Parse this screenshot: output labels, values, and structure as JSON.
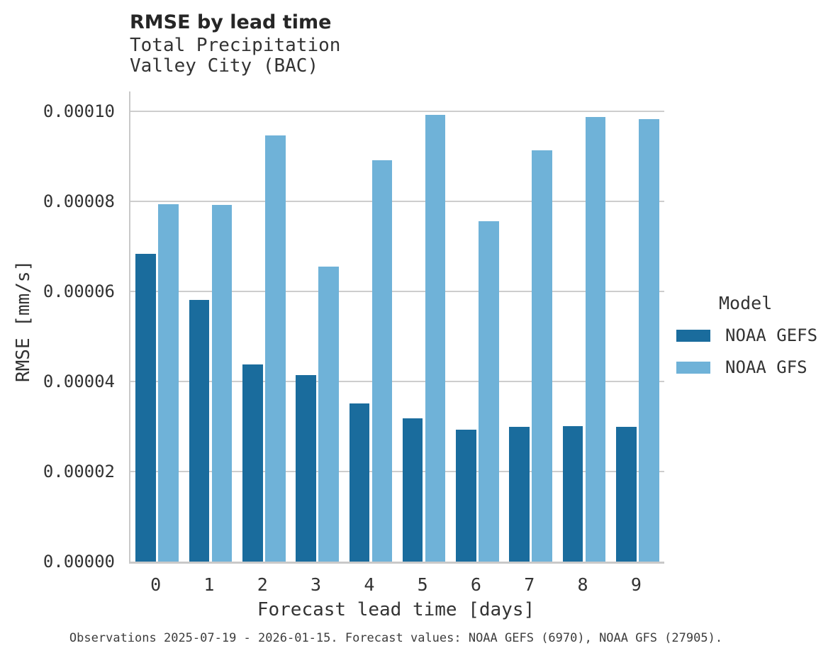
{
  "header": {
    "title": "RMSE by lead time",
    "subtitle_line1": "Total Precipitation",
    "subtitle_line2": "Valley City (BAC)"
  },
  "legend": {
    "title": "Model"
  },
  "caption": "Observations 2025-07-19 - 2026-01-15. Forecast values: NOAA GEFS (6970), NOAA GFS (27905).",
  "colors": {
    "noaa_gefs": "#1a6c9d",
    "noaa_gfs": "#6fb2d8",
    "gridline": "#cdcdcd",
    "spine": "#c9c9c9",
    "text": "#333333"
  },
  "chart_data": {
    "type": "bar",
    "title": "RMSE by lead time",
    "subtitle": [
      "Total Precipitation",
      "Valley City (BAC)"
    ],
    "xlabel": "Forecast lead time [days]",
    "ylabel": "RMSE [mm/s]",
    "categories": [
      "0",
      "1",
      "2",
      "3",
      "4",
      "5",
      "6",
      "7",
      "8",
      "9"
    ],
    "series": [
      {
        "name": "NOAA GEFS",
        "color": "#1a6c9d",
        "values": [
          6.83e-05,
          5.81e-05,
          4.37e-05,
          4.14e-05,
          3.51e-05,
          3.18e-05,
          2.93e-05,
          2.99e-05,
          3.01e-05,
          2.99e-05
        ]
      },
      {
        "name": "NOAA GFS",
        "color": "#6fb2d8",
        "values": [
          7.94e-05,
          7.92e-05,
          9.47e-05,
          6.55e-05,
          8.91e-05,
          9.92e-05,
          7.56e-05,
          9.13e-05,
          9.88e-05,
          9.82e-05
        ]
      }
    ],
    "ylim": [
      0,
      0.0001044
    ],
    "yticks": [
      0,
      2e-05,
      4e-05,
      6e-05,
      8e-05,
      0.0001
    ],
    "ytick_labels": [
      "0.00000",
      "0.00002",
      "0.00004",
      "0.00006",
      "0.00008",
      "0.00010"
    ],
    "grid": true,
    "legend_title": "Model",
    "legend_position": "center right"
  }
}
